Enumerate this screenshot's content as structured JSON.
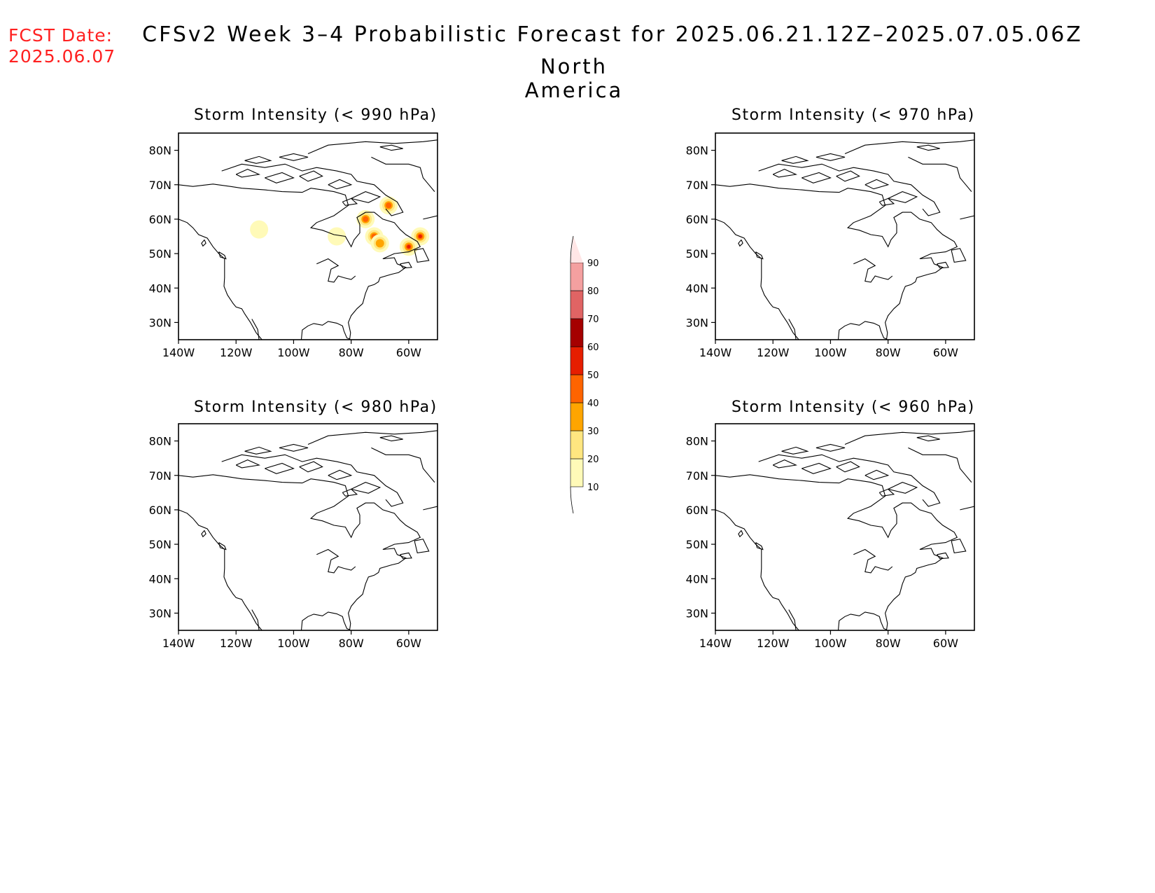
{
  "header": {
    "fcst_label": "FCST Date:",
    "fcst_date": "2025.06.07",
    "title": "CFSv2 Week 3–4 Probabilistic Forecast for 2025.06.21.12Z–2025.07.05.06Z",
    "region": "North America"
  },
  "panels": [
    {
      "id": "p990",
      "title": "Storm Intensity (< 990 hPa)"
    },
    {
      "id": "p970",
      "title": "Storm Intensity (< 970 hPa)"
    },
    {
      "id": "p980",
      "title": "Storm Intensity (< 980 hPa)"
    },
    {
      "id": "p960",
      "title": "Storm Intensity (< 960 hPa)"
    }
  ],
  "axes": {
    "lat_labels": [
      "80N",
      "70N",
      "60N",
      "50N",
      "40N",
      "30N"
    ],
    "lon_labels": [
      "140W",
      "120W",
      "100W",
      "80W",
      "60W"
    ]
  },
  "colorbar": {
    "levels": [
      "10",
      "20",
      "30",
      "40",
      "50",
      "60",
      "70",
      "80",
      "90"
    ],
    "colors": [
      "#fffab8",
      "#ffe680",
      "#ffa500",
      "#ff6400",
      "#e61e00",
      "#a50000",
      "#e06464",
      "#f4a0a0",
      "#ffe6e6"
    ]
  },
  "storm_blobs_990": [
    {
      "lon": -67,
      "lat": 64,
      "level": 40
    },
    {
      "lon": -75,
      "lat": 60,
      "level": 40
    },
    {
      "lon": -72,
      "lat": 55,
      "level": 40
    },
    {
      "lon": -70,
      "lat": 53,
      "level": 30
    },
    {
      "lon": -60,
      "lat": 52,
      "level": 50
    },
    {
      "lon": -56,
      "lat": 55,
      "level": 50
    },
    {
      "lon": -85,
      "lat": 55,
      "level": 10
    },
    {
      "lon": -112,
      "lat": 57,
      "level": 10
    }
  ]
}
